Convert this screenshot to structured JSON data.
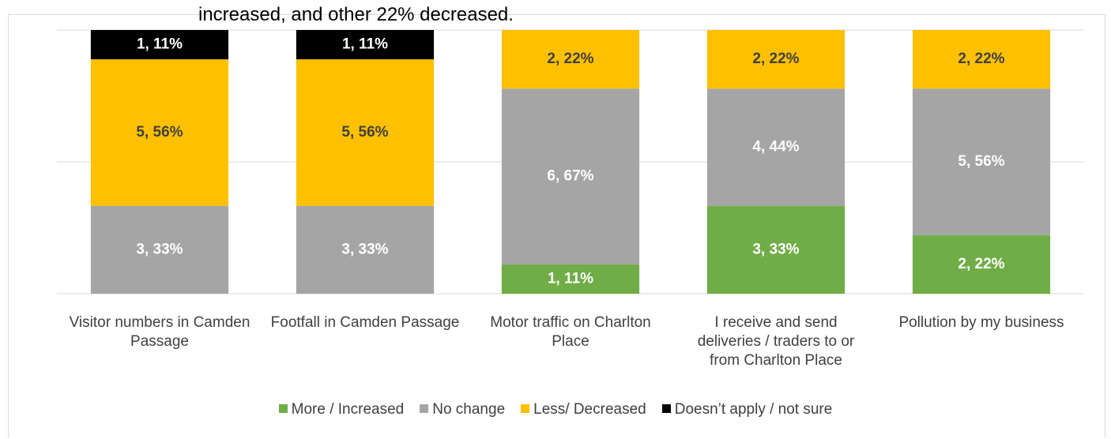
{
  "chart_data": {
    "type": "stacked-bar",
    "caption": "increased, and other 22% decreased.",
    "categories": [
      "Visitor numbers in Camden Passage",
      "Footfall in Camden Passage",
      "Motor traffic on Charlton Place",
      "I receive and send deliveries / traders to or from Charlton Place",
      "Pollution by my business"
    ],
    "series": [
      {
        "name": "More / Increased",
        "color": "#70ad47",
        "label_color": "#ffffff",
        "values": [
          null,
          null,
          11.11,
          33.33,
          22.22
        ],
        "value_labels": [
          null,
          null,
          "1, 11%",
          "3, 33%",
          "2, 22%"
        ]
      },
      {
        "name": "No change",
        "color": "#a5a5a5",
        "label_color": "#ffffff",
        "values": [
          33.33,
          33.33,
          66.67,
          44.44,
          55.56
        ],
        "value_labels": [
          "3, 33%",
          "3, 33%",
          "6, 67%",
          "4, 44%",
          "5, 56%"
        ]
      },
      {
        "name": "Less/ Decreased",
        "color": "#ffc000",
        "label_color": "#404040",
        "values": [
          55.56,
          55.56,
          22.22,
          22.22,
          22.22
        ],
        "value_labels": [
          "5, 56%",
          "5, 56%",
          "2, 22%",
          "2, 22%",
          "2, 22%"
        ]
      },
      {
        "name": "Doesn’t apply / not sure",
        "color": "#000000",
        "label_color": "#ffffff",
        "values": [
          11.11,
          11.11,
          null,
          null,
          null
        ],
        "value_labels": [
          "1, 11%",
          "1, 11%",
          null,
          null,
          null
        ]
      }
    ],
    "ylim": [
      0,
      100
    ],
    "yticks": [
      0,
      50,
      100
    ],
    "grid": true,
    "legend": "bottom"
  }
}
